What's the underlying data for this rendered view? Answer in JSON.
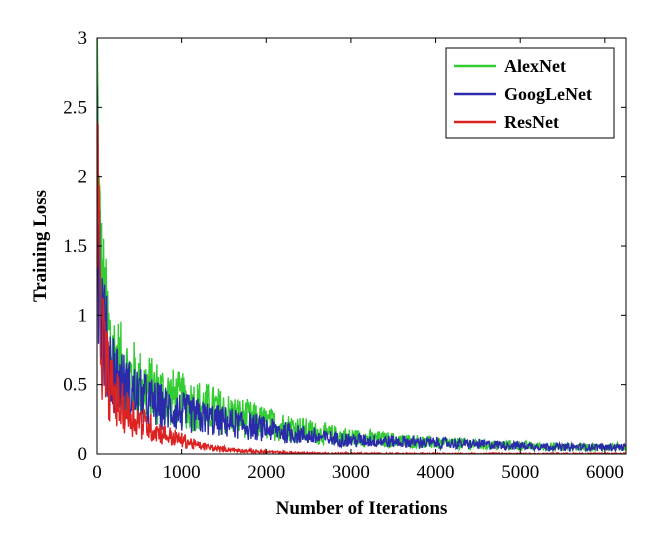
{
  "chart_data": {
    "type": "line",
    "title": "",
    "xlabel": "Number of Iterations",
    "ylabel": "Training Loss",
    "xlim": [
      0,
      6250
    ],
    "ylim": [
      0,
      3
    ],
    "xticks": [
      0,
      1000,
      2000,
      3000,
      4000,
      5000,
      6000
    ],
    "yticks": [
      0,
      0.5,
      1,
      1.5,
      2,
      2.5,
      3
    ],
    "xtick_labels": [
      "0",
      "1000",
      "2000",
      "3000",
      "4000",
      "5000",
      "6000"
    ],
    "ytick_labels": [
      "0",
      "0.5",
      "1",
      "1.5",
      "2",
      "2.5",
      "3"
    ],
    "grid": false,
    "legend_position": "top-right",
    "series": [
      {
        "name": "AlexNet",
        "color": "#33cc33",
        "x": [
          0,
          20,
          50,
          100,
          150,
          200,
          300,
          400,
          500,
          600,
          800,
          1000,
          1200,
          1400,
          1600,
          1800,
          2000,
          2200,
          2400,
          2600,
          3000,
          3500,
          4000,
          4500,
          5000,
          5500,
          6000,
          6250
        ],
        "y": [
          2.8,
          1.7,
          1.2,
          0.95,
          0.8,
          0.7,
          0.6,
          0.55,
          0.5,
          0.47,
          0.42,
          0.38,
          0.35,
          0.32,
          0.28,
          0.25,
          0.22,
          0.2,
          0.18,
          0.15,
          0.12,
          0.1,
          0.08,
          0.07,
          0.06,
          0.05,
          0.05,
          0.05
        ]
      },
      {
        "name": "GoogLeNet",
        "color": "#2a2aaa",
        "x": [
          0,
          20,
          50,
          100,
          150,
          200,
          300,
          400,
          500,
          600,
          800,
          1000,
          1200,
          1400,
          1600,
          1800,
          2000,
          2200,
          2400,
          2600,
          3000,
          3500,
          4000,
          4500,
          5000,
          5500,
          6000,
          6250
        ],
        "y": [
          2.4,
          1.5,
          1.05,
          0.8,
          0.68,
          0.6,
          0.5,
          0.45,
          0.42,
          0.38,
          0.33,
          0.3,
          0.27,
          0.24,
          0.22,
          0.2,
          0.18,
          0.16,
          0.14,
          0.12,
          0.1,
          0.09,
          0.08,
          0.07,
          0.06,
          0.05,
          0.05,
          0.05
        ]
      },
      {
        "name": "ResNet",
        "color": "#dd2222",
        "x": [
          0,
          20,
          50,
          100,
          150,
          200,
          300,
          400,
          500,
          600,
          800,
          1000,
          1200,
          1400,
          1600,
          1800,
          2000,
          2200,
          2400,
          2600,
          3000,
          3500,
          4000,
          4500,
          5000,
          5500,
          6000,
          6250
        ],
        "y": [
          2.2,
          1.3,
          0.9,
          0.65,
          0.5,
          0.42,
          0.33,
          0.28,
          0.24,
          0.2,
          0.14,
          0.1,
          0.06,
          0.04,
          0.03,
          0.02,
          0.015,
          0.01,
          0.008,
          0.005,
          0.003,
          0.002,
          0.001,
          0.001,
          0.001,
          0.001,
          0.001,
          0.001
        ]
      }
    ]
  }
}
